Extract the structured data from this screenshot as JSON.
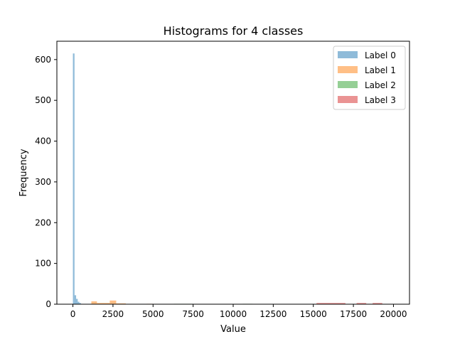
{
  "chart_data": {
    "type": "histogram",
    "title": "Histograms for 4 classes",
    "xlabel": "Value",
    "ylabel": "Frequency",
    "xlim": [
      -1000,
      21000
    ],
    "ylim": [
      0,
      645
    ],
    "xticks": [
      0,
      2500,
      5000,
      7500,
      10000,
      12500,
      15000,
      17500,
      20000
    ],
    "yticks": [
      0,
      100,
      200,
      300,
      400,
      500,
      600
    ],
    "grid": false,
    "legend_position": "upper right",
    "series": [
      {
        "name": "Label 0",
        "color": "#1f77b4",
        "alpha": 0.5,
        "bins": [
          {
            "x0": 0,
            "x1": 100,
            "count": 615
          },
          {
            "x0": 100,
            "x1": 200,
            "count": 22
          },
          {
            "x0": 200,
            "x1": 300,
            "count": 13
          },
          {
            "x0": 300,
            "x1": 400,
            "count": 6
          },
          {
            "x0": 400,
            "x1": 500,
            "count": 3
          }
        ]
      },
      {
        "name": "Label 1",
        "color": "#ff7f0e",
        "alpha": 0.5,
        "bins": [
          {
            "x0": 1150,
            "x1": 1500,
            "count": 7
          },
          {
            "x0": 1500,
            "x1": 2300,
            "count": 3
          },
          {
            "x0": 2300,
            "x1": 2700,
            "count": 9
          },
          {
            "x0": 2700,
            "x1": 3300,
            "count": 2
          },
          {
            "x0": 4600,
            "x1": 5000,
            "count": 1
          }
        ]
      },
      {
        "name": "Label 2",
        "color": "#2ca02c",
        "alpha": 0.5,
        "bins": [
          {
            "x0": 6300,
            "x1": 7500,
            "count": 1
          },
          {
            "x0": 10600,
            "x1": 11200,
            "count": 1
          }
        ]
      },
      {
        "name": "Label 3",
        "color": "#d62728",
        "alpha": 0.5,
        "bins": [
          {
            "x0": 15200,
            "x1": 17000,
            "count": 3
          },
          {
            "x0": 17700,
            "x1": 18300,
            "count": 3
          },
          {
            "x0": 18300,
            "x1": 18700,
            "count": 1
          },
          {
            "x0": 18700,
            "x1": 19300,
            "count": 3
          }
        ]
      }
    ]
  }
}
